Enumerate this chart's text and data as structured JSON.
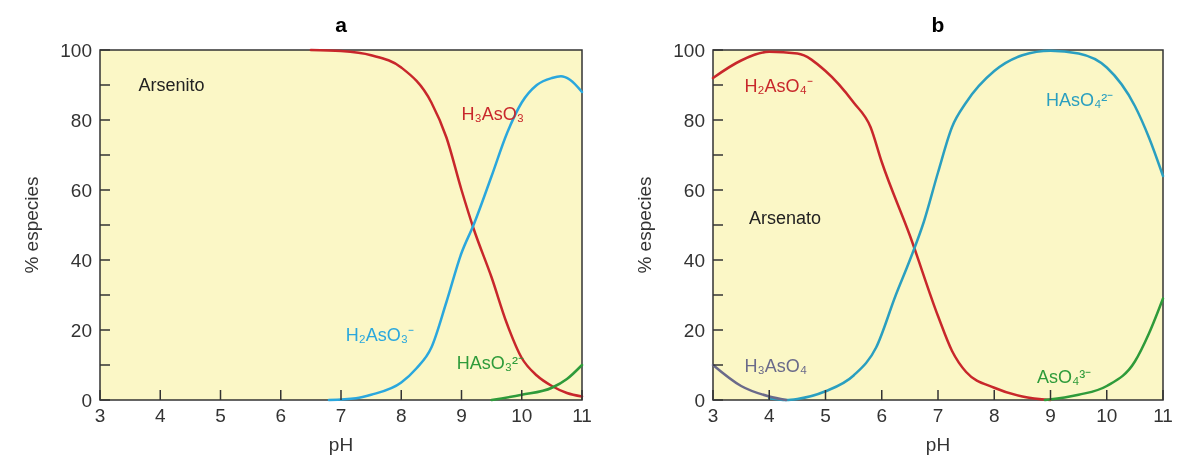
{
  "chart_data": [
    {
      "type": "line",
      "title": "a",
      "xlabel": "pH",
      "ylabel": "% especies",
      "xlim": [
        3,
        11
      ],
      "xticks": [
        3,
        4,
        5,
        6,
        7,
        8,
        9,
        10,
        11
      ],
      "ylim": [
        0,
        100
      ],
      "yticks": [
        0,
        {
          "value": 10,
          "label": null
        },
        20,
        {
          "value": 30,
          "label": null
        },
        40,
        {
          "value": 50,
          "label": null
        },
        60,
        {
          "value": 70,
          "label": null
        },
        80,
        {
          "value": 90,
          "label": null
        },
        100
      ],
      "grid": false,
      "legend": false,
      "marker": "none",
      "line_style": "solid",
      "series": [
        {
          "name": "H₃AsO₃",
          "color": "#c8272b",
          "x": [
            6.5,
            7,
            7.5,
            8,
            8.5,
            8.75,
            9,
            9.2,
            9.5,
            9.75,
            10,
            10.25,
            10.5,
            10.75,
            11
          ],
          "values": [
            100,
            99.7,
            98.5,
            95,
            85,
            75,
            60,
            49,
            35,
            22,
            12,
            7,
            4,
            2,
            1
          ]
        },
        {
          "name": "H₂AsO₃⁻",
          "color": "#2aa7dd",
          "x": [
            6.8,
            7.25,
            7.5,
            8,
            8.25,
            8.5,
            8.75,
            9,
            9.2,
            9.5,
            9.75,
            10,
            10.25,
            10.5,
            10.65,
            10.8,
            11
          ],
          "values": [
            0,
            0.5,
            1.5,
            5,
            9,
            15,
            28,
            42,
            50,
            64,
            76,
            85,
            90,
            92,
            92.5,
            91.5,
            88
          ]
        },
        {
          "name": "HAsO₃²⁻",
          "color": "#2e9b3a",
          "x": [
            9.5,
            10,
            10.5,
            10.75,
            11
          ],
          "values": [
            0,
            1.5,
            3.5,
            6,
            10
          ]
        }
      ],
      "annotations": [
        "Arsenito"
      ]
    },
    {
      "type": "line",
      "title": "b",
      "xlabel": "pH",
      "ylabel": "% especies",
      "xlim": [
        3,
        11
      ],
      "xticks": [
        3,
        4,
        5,
        6,
        7,
        8,
        9,
        10,
        11
      ],
      "ylim": [
        0,
        100
      ],
      "yticks": [
        0,
        {
          "value": 10,
          "label": null
        },
        20,
        {
          "value": 30,
          "label": null
        },
        40,
        {
          "value": 50,
          "label": null
        },
        60,
        {
          "value": 70,
          "label": null
        },
        80,
        {
          "value": 90,
          "label": null
        },
        100
      ],
      "grid": false,
      "legend": false,
      "marker": "none",
      "line_style": "solid",
      "series": [
        {
          "name": "H₂AsO₄⁻",
          "color": "#c8272b",
          "x": [
            3,
            3.5,
            4,
            4.5,
            5,
            5.5,
            5.8,
            6,
            6.5,
            7,
            7.25,
            7.5,
            8,
            8.5,
            9
          ],
          "values": [
            92,
            97,
            99.5,
            99,
            94,
            85,
            78,
            68,
            47,
            24,
            14,
            8,
            3.5,
            1,
            0
          ]
        },
        {
          "name": "HAsO₄²⁻",
          "color": "#2a9fc0",
          "x": [
            4,
            4.3,
            4.5,
            5,
            5.5,
            5.9,
            6.25,
            6.5,
            6.75,
            7,
            7.25,
            7.5,
            8,
            8.5,
            9,
            9.5,
            10,
            10.5,
            10.75,
            11
          ],
          "values": [
            0.5,
            0,
            0.3,
            2.5,
            7,
            15,
            30,
            40,
            51,
            65,
            78,
            85,
            94,
            98.5,
            99.8,
            99,
            95,
            84,
            75,
            64
          ]
        },
        {
          "name": "AsO₄³⁻",
          "color": "#2e9b3a",
          "x": [
            8.9,
            9.5,
            10,
            10.5,
            10.75,
            11
          ],
          "values": [
            0,
            1.5,
            4,
            11,
            19,
            29
          ]
        },
        {
          "name": "H₃AsO₄",
          "color": "#6a6a8a",
          "x": [
            3,
            3.5,
            4,
            4.3
          ],
          "values": [
            10,
            4,
            1,
            0
          ]
        }
      ],
      "annotations": [
        "Arsenato"
      ]
    }
  ]
}
